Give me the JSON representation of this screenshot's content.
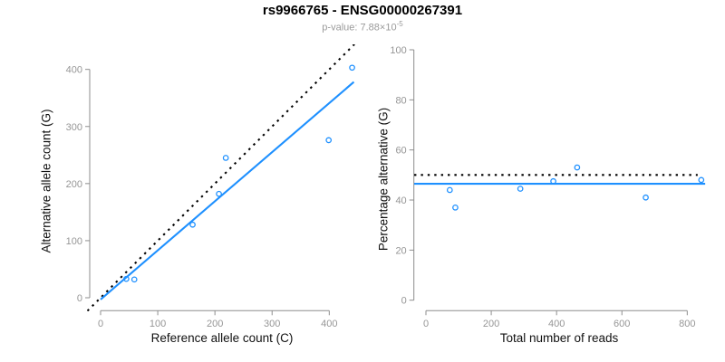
{
  "header": {
    "title": "rs9966765 - ENSG00000267391",
    "pvalue_text": "p-value: 7.88×10",
    "pvalue_exponent": "-5"
  },
  "colors": {
    "accent_blue": "#1E90FF",
    "line_black": "#000000",
    "axis_gray": "#8e8e8e",
    "tick_text_gray": "#969696",
    "subtitle_gray": "#9a9a9a",
    "title_black": "#000000"
  },
  "chart_data": [
    {
      "type": "scatter",
      "xlabel": "Reference allele count (C)",
      "ylabel": "Alternative allele count (G)",
      "xticks": [
        0,
        100,
        200,
        300,
        400
      ],
      "yticks": [
        0,
        100,
        200,
        300,
        400
      ],
      "xlim": [
        -23,
        444
      ],
      "ylim": [
        -23,
        437
      ],
      "grid": false,
      "points": [
        [
          45,
          33
        ],
        [
          59,
          32
        ],
        [
          161,
          128
        ],
        [
          207,
          182
        ],
        [
          219,
          245
        ],
        [
          399,
          276
        ],
        [
          440,
          403
        ]
      ],
      "lines": [
        {
          "name": "expected-50-50-line",
          "style": "dotted",
          "color": "#000000",
          "slope": 1,
          "intercept": 0,
          "x_range": [
            -23,
            444
          ]
        },
        {
          "name": "fit-line",
          "style": "solid",
          "color": "#1E90FF",
          "slope": 0.86,
          "intercept": -3,
          "x_range": [
            0,
            443
          ]
        }
      ]
    },
    {
      "type": "scatter",
      "xlabel": "Total number of reads",
      "ylabel": "Percentage alternative (G)",
      "xticks": [
        0,
        200,
        400,
        600,
        800
      ],
      "yticks": [
        0,
        20,
        40,
        60,
        80,
        100
      ],
      "xlim": [
        -36,
        855
      ],
      "ylim": [
        -4.2,
        100.7
      ],
      "grid": false,
      "points": [
        [
          73,
          44
        ],
        [
          90,
          37
        ],
        [
          289,
          44.5
        ],
        [
          390,
          47.5
        ],
        [
          463,
          53
        ],
        [
          673,
          41
        ],
        [
          843,
          48
        ]
      ],
      "lines": [
        {
          "name": "expected-50pct-line",
          "style": "dotted",
          "color": "#000000",
          "slope": 0,
          "intercept": 50,
          "x_range": [
            -36,
            832
          ]
        },
        {
          "name": "fit-line",
          "style": "solid",
          "color": "#1E90FF",
          "slope": 0,
          "intercept": 46.5,
          "x_range": [
            -36,
            855
          ]
        }
      ]
    }
  ]
}
